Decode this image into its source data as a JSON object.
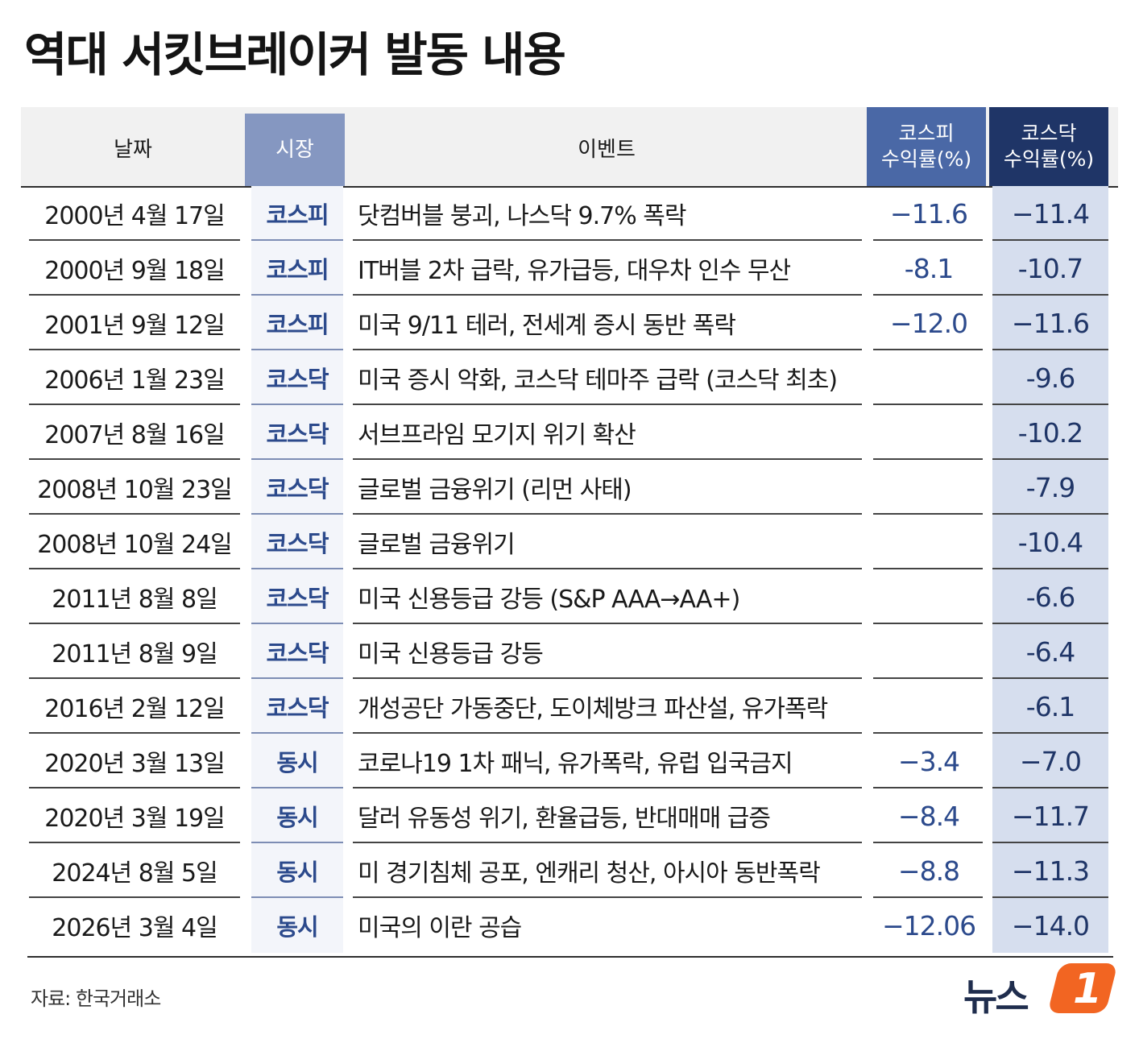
{
  "title": "역대 서킷브레이커 발동 내용",
  "source": "자료: 한국거래소",
  "logo": {
    "text": "뉴스",
    "badge": "1"
  },
  "colors": {
    "market_header": "#8597c1",
    "kospi_header": "#4a68a6",
    "kosdaq_header": "#1f3567",
    "kosdaq_column": "#d6deee",
    "logo_accent": "#f26522"
  },
  "chart_data": {
    "type": "table",
    "title": "역대 서킷브레이커 발동 내용",
    "columns": [
      "날짜",
      "시장",
      "이벤트",
      "코스피 수익률(%)",
      "코스닥 수익률(%)"
    ],
    "rows": [
      {
        "date": "2000년 4월 17일",
        "market": "코스피",
        "event": "닷컴버블 붕괴, 나스닥 9.7% 폭락",
        "kospi": "−11.6",
        "kosdaq": "−11.4"
      },
      {
        "date": "2000년 9월 18일",
        "market": "코스피",
        "event": "IT버블 2차 급락, 유가급등, 대우차 인수 무산",
        "kospi": "-8.1",
        "kosdaq": "-10.7"
      },
      {
        "date": "2001년 9월 12일",
        "market": "코스피",
        "event": "미국 9/11 테러, 전세계 증시 동반 폭락",
        "kospi": "−12.0",
        "kosdaq": "−11.6"
      },
      {
        "date": "2006년 1월 23일",
        "market": "코스닥",
        "event": "미국 증시 악화, 코스닥 테마주 급락 (코스닥 최초)",
        "kospi": "",
        "kosdaq": "-9.6"
      },
      {
        "date": "2007년 8월 16일",
        "market": "코스닥",
        "event": "서브프라임 모기지 위기 확산",
        "kospi": "",
        "kosdaq": "-10.2"
      },
      {
        "date": "2008년 10월 23일",
        "market": "코스닥",
        "event": "글로벌 금융위기 (리먼 사태)",
        "kospi": "",
        "kosdaq": "-7.9"
      },
      {
        "date": "2008년 10월 24일",
        "market": "코스닥",
        "event": "글로벌 금융위기",
        "kospi": "",
        "kosdaq": "-10.4"
      },
      {
        "date": "2011년 8월 8일",
        "market": "코스닥",
        "event": "미국 신용등급 강등 (S&P AAA→AA+)",
        "kospi": "",
        "kosdaq": "-6.6"
      },
      {
        "date": "2011년 8월 9일",
        "market": "코스닥",
        "event": "미국 신용등급 강등",
        "kospi": "",
        "kosdaq": "-6.4"
      },
      {
        "date": "2016년 2월 12일",
        "market": "코스닥",
        "event": "개성공단 가동중단, 도이체방크 파산설, 유가폭락",
        "kospi": "",
        "kosdaq": "-6.1"
      },
      {
        "date": "2020년 3월 13일",
        "market": "동시",
        "event": "코로나19 1차 패닉, 유가폭락, 유럽 입국금지",
        "kospi": "−3.4",
        "kosdaq": "−7.0"
      },
      {
        "date": "2020년 3월 19일",
        "market": "동시",
        "event": "달러 유동성 위기, 환율급등, 반대매매 급증",
        "kospi": "−8.4",
        "kosdaq": "−11.7"
      },
      {
        "date": "2024년 8월 5일",
        "market": "동시",
        "event": "미 경기침체 공포, 엔캐리 청산, 아시아 동반폭락",
        "kospi": "−8.8",
        "kosdaq": "−11.3"
      },
      {
        "date": "2026년 3월 4일",
        "market": "동시",
        "event": "미국의 이란 공습",
        "kospi": "−12.06",
        "kosdaq": "−14.0"
      }
    ]
  },
  "header": {
    "date": "날짜",
    "market": "시장",
    "event": "이벤트",
    "kospi_line1": "코스피",
    "kospi_line2": "수익률(%)",
    "kosdaq_line1": "코스닥",
    "kosdaq_line2": "수익률(%)"
  }
}
